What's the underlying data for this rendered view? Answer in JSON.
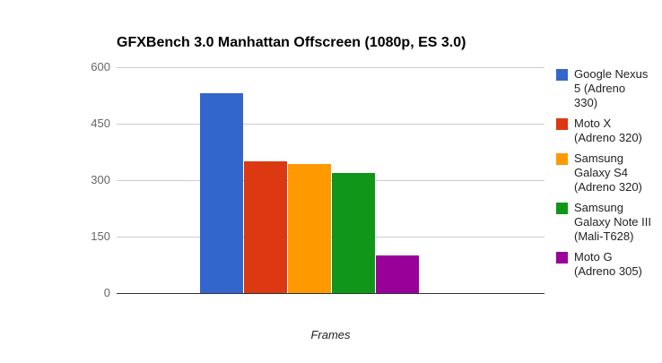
{
  "chart_data": {
    "type": "bar",
    "title": "GFXBench 3.0 Manhattan Offscreen (1080p, ES 3.0)",
    "xlabel": "Frames",
    "ylabel": "",
    "ylim": [
      0,
      600
    ],
    "yticks": [
      0,
      150,
      300,
      450,
      600
    ],
    "grid": true,
    "legend_position": "right",
    "background": "#FFFFFF",
    "categories": [
      ""
    ],
    "series": [
      {
        "name": "Google Nexus 5 (Adreno 330)",
        "values": [
          530
        ],
        "color": "#3366CC"
      },
      {
        "name": "Moto X (Adreno 320)",
        "values": [
          350
        ],
        "color": "#DC3912"
      },
      {
        "name": "Samsung Galaxy S4 (Adreno 320)",
        "values": [
          342
        ],
        "color": "#FF9900"
      },
      {
        "name": "Samsung Galaxy Note III (Mali-T628)",
        "values": [
          320
        ],
        "color": "#109618"
      },
      {
        "name": "Moto G (Adreno 305)",
        "values": [
          101
        ],
        "color": "#990099"
      }
    ],
    "axis_colors": {
      "gridline": "#CCCCCC",
      "baseline": "#333333",
      "tick_label": "#666666",
      "axis_title": "#222222",
      "chart_title": "#000000"
    }
  }
}
